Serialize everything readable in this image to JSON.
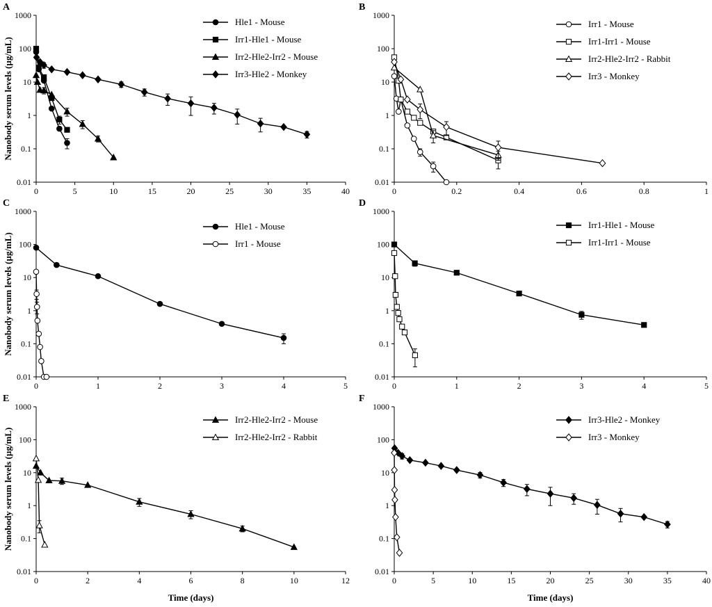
{
  "figure": {
    "ylabel": "Nanobody serum levels (µg/mL)",
    "xlabel": "Time (days)"
  },
  "chart_data": [
    {
      "panel": "A",
      "type": "scatter",
      "xlim": [
        0,
        40
      ],
      "xticks": [
        0,
        5,
        10,
        15,
        20,
        25,
        30,
        35,
        40
      ],
      "ylim": [
        0.01,
        1000
      ],
      "yscale": "log",
      "yticks": [
        "0.01",
        "0.1",
        "1",
        "10",
        "100",
        "1000"
      ],
      "ylabel": "Nanobody serum levels (µg/mL)",
      "xlabel": "",
      "series": [
        {
          "name": "Hle1 - Mouse",
          "marker": "circle",
          "filled": true,
          "x": [
            0,
            0.33,
            1,
            2,
            3,
            4
          ],
          "y": [
            80,
            24,
            11,
            1.6,
            0.4,
            0.15
          ],
          "err": [
            0,
            0,
            0,
            0,
            0,
            0.05
          ]
        },
        {
          "name": "Irr1-Hle1 - Mouse",
          "marker": "square",
          "filled": true,
          "x": [
            0,
            0.33,
            1,
            2,
            3,
            4
          ],
          "y": [
            100,
            27,
            14,
            3.3,
            0.75,
            0.37
          ],
          "err": [
            0,
            0,
            0,
            0,
            0.2,
            0
          ]
        },
        {
          "name": "Irr2-Hle2-Irr2 - Mouse",
          "marker": "triangle",
          "filled": true,
          "x": [
            0,
            0.17,
            0.5,
            1,
            2,
            4,
            6,
            8,
            10
          ],
          "y": [
            16,
            10,
            5.8,
            5.6,
            4.2,
            1.3,
            0.55,
            0.2,
            0.055
          ],
          "err": [
            0,
            0,
            0,
            1.2,
            0,
            0.35,
            0.15,
            0.04,
            0
          ]
        },
        {
          "name": "Irr3-Hle2 - Monkey",
          "marker": "diamond",
          "filled": true,
          "x": [
            0.05,
            0.5,
            1,
            2,
            4,
            6,
            8,
            11,
            14,
            17,
            20,
            23,
            26,
            29,
            32,
            35
          ],
          "y": [
            55,
            40,
            32,
            24,
            20,
            16,
            12,
            8.5,
            5,
            3.2,
            2.3,
            1.7,
            1.05,
            0.57,
            0.45,
            0.27
          ],
          "err": [
            0,
            0,
            6,
            0,
            0,
            0,
            0,
            1.6,
            1.2,
            1.2,
            1.3,
            0.6,
            0.5,
            0.25,
            0,
            0.06
          ]
        }
      ]
    },
    {
      "panel": "B",
      "type": "scatter",
      "xlim": [
        0,
        1
      ],
      "xticks": [
        "0",
        "0.2",
        "0.4",
        "0.6",
        "0.8",
        "1"
      ],
      "ylim": [
        0.01,
        1000
      ],
      "yscale": "log",
      "yticks": [
        "0.01",
        "0.1",
        "1",
        "10",
        "100",
        "1000"
      ],
      "ylabel": "",
      "xlabel": "",
      "series": [
        {
          "name": "Irr1 - Mouse",
          "marker": "circle",
          "filled": false,
          "x": [
            0,
            0.007,
            0.014,
            0.021,
            0.042,
            0.063,
            0.083,
            0.125,
            0.167
          ],
          "y": [
            15,
            3.2,
            1.3,
            3,
            0.5,
            0.2,
            0.08,
            0.03,
            0.01
          ],
          "err": [
            0,
            0,
            0,
            0,
            0,
            0,
            0.02,
            0.01,
            0
          ]
        },
        {
          "name": "Irr1-Irr1 - Mouse",
          "marker": "square",
          "filled": false,
          "x": [
            0,
            0.014,
            0.021,
            0.042,
            0.063,
            0.083,
            0.125,
            0.167,
            0.333
          ],
          "y": [
            55,
            11,
            3,
            1.3,
            0.85,
            0.6,
            0.33,
            0.22,
            0.045
          ],
          "err": [
            0,
            0,
            0,
            0,
            0,
            0,
            0,
            0,
            0.02
          ]
        },
        {
          "name": "Irr2-Hle2-Irr2 - Rabbit",
          "marker": "triangle",
          "filled": false,
          "x": [
            0,
            0.083,
            0.125,
            0.333
          ],
          "y": [
            27,
            6,
            0.25,
            0.065
          ],
          "err": [
            0,
            0,
            0.1,
            0.02
          ]
        },
        {
          "name": "Irr3 - Monkey",
          "marker": "diamond",
          "filled": false,
          "x": [
            0,
            0.021,
            0.042,
            0.083,
            0.167,
            0.333,
            0.667
          ],
          "y": [
            40,
            12,
            3,
            1.5,
            0.45,
            0.11,
            0.037
          ],
          "err": [
            0,
            0,
            0,
            0.7,
            0.2,
            0.06,
            0
          ]
        }
      ]
    },
    {
      "panel": "C",
      "type": "scatter",
      "xlim": [
        0,
        5
      ],
      "xticks": [
        0,
        1,
        2,
        3,
        4,
        5
      ],
      "ylim": [
        0.01,
        1000
      ],
      "yscale": "log",
      "yticks": [
        "0.01",
        "0.1",
        "1",
        "10",
        "100",
        "1000"
      ],
      "ylabel": "Nanobody serum levels (µg/mL)",
      "xlabel": "",
      "series": [
        {
          "name": "Hle1 - Mouse",
          "marker": "circle",
          "filled": true,
          "x": [
            0,
            0.33,
            1,
            2,
            3,
            4
          ],
          "y": [
            80,
            24,
            11,
            1.6,
            0.4,
            0.15
          ],
          "err": [
            0,
            0,
            0,
            0,
            0,
            0.05
          ]
        },
        {
          "name": "Irr1 - Mouse",
          "marker": "circle",
          "filled": false,
          "x": [
            0,
            0.007,
            0.014,
            0.021,
            0.042,
            0.063,
            0.083,
            0.125,
            0.167
          ],
          "y": [
            15,
            3.2,
            1.3,
            0.5,
            0.2,
            0.08,
            0.03,
            0.01,
            0.01
          ],
          "err": [
            0,
            1,
            0.5,
            0,
            0,
            0,
            0,
            0,
            0
          ]
        }
      ]
    },
    {
      "panel": "D",
      "type": "scatter",
      "xlim": [
        0,
        5
      ],
      "xticks": [
        0,
        1,
        2,
        3,
        4,
        5
      ],
      "ylim": [
        0.01,
        1000
      ],
      "yscale": "log",
      "yticks": [
        "0.01",
        "0.1",
        "1",
        "10",
        "100",
        "1000"
      ],
      "ylabel": "",
      "xlabel": "",
      "series": [
        {
          "name": "Irr1-Hle1 - Mouse",
          "marker": "square",
          "filled": true,
          "x": [
            0,
            0.33,
            1,
            2,
            3,
            4
          ],
          "y": [
            100,
            27,
            14,
            3.3,
            0.75,
            0.37
          ],
          "err": [
            0,
            5,
            0,
            0,
            0.2,
            0
          ]
        },
        {
          "name": "Irr1-Irr1 - Mouse",
          "marker": "square",
          "filled": false,
          "x": [
            0,
            0.014,
            0.021,
            0.042,
            0.063,
            0.083,
            0.125,
            0.167,
            0.333
          ],
          "y": [
            55,
            11,
            3,
            1.3,
            0.85,
            0.55,
            0.33,
            0.22,
            0.045
          ],
          "err": [
            0,
            0,
            0,
            0,
            0,
            0,
            0,
            0,
            0.025
          ]
        }
      ]
    },
    {
      "panel": "E",
      "type": "scatter",
      "xlim": [
        0,
        12
      ],
      "xticks": [
        0,
        2,
        4,
        6,
        8,
        10,
        12
      ],
      "ylim": [
        0.01,
        1000
      ],
      "yscale": "log",
      "yticks": [
        "0.01",
        "0.1",
        "1",
        "10",
        "100",
        "1000"
      ],
      "ylabel": "Nanobody serum levels (µg/mL)",
      "xlabel": "Time (days)",
      "series": [
        {
          "name": "Irr2-Hle2-Irr2 - Mouse",
          "marker": "triangle",
          "filled": true,
          "x": [
            0,
            0.17,
            0.5,
            1,
            2,
            4,
            6,
            8,
            10
          ],
          "y": [
            16,
            10,
            5.8,
            5.6,
            4.2,
            1.3,
            0.55,
            0.2,
            0.055
          ],
          "err": [
            0,
            0,
            0,
            1.2,
            0,
            0.35,
            0.15,
            0.04,
            0
          ]
        },
        {
          "name": "Irr2-Hle2-Irr2 - Rabbit",
          "marker": "triangle",
          "filled": false,
          "x": [
            0,
            0.083,
            0.125,
            0.333
          ],
          "y": [
            27,
            6,
            0.25,
            0.065
          ],
          "err": [
            0,
            0,
            0.1,
            0
          ]
        }
      ]
    },
    {
      "panel": "F",
      "type": "scatter",
      "xlim": [
        0,
        40
      ],
      "xticks": [
        0,
        5,
        10,
        15,
        20,
        25,
        30,
        35,
        40
      ],
      "ylim": [
        0.01,
        1000
      ],
      "yscale": "log",
      "yticks": [
        "0.01",
        "0.1",
        "1",
        "10",
        "100",
        "1000"
      ],
      "ylabel": "",
      "xlabel": "Time (days)",
      "series": [
        {
          "name": "Irr3-Hle2 - Monkey",
          "marker": "diamond",
          "filled": true,
          "x": [
            0.05,
            0.5,
            1,
            2,
            4,
            6,
            8,
            11,
            14,
            17,
            20,
            23,
            26,
            29,
            32,
            35
          ],
          "y": [
            55,
            40,
            32,
            24,
            20,
            16,
            12,
            8.5,
            5,
            3.2,
            2.3,
            1.7,
            1.05,
            0.57,
            0.45,
            0.27
          ],
          "err": [
            0,
            0,
            6,
            0,
            0,
            0,
            0,
            1.6,
            1.2,
            1.2,
            1.3,
            0.6,
            0.5,
            0.25,
            0,
            0.06
          ]
        },
        {
          "name": "Irr3 - Monkey",
          "marker": "diamond",
          "filled": false,
          "x": [
            0,
            0.021,
            0.042,
            0.083,
            0.167,
            0.333,
            0.667
          ],
          "y": [
            40,
            12,
            3,
            1.5,
            0.45,
            0.11,
            0.037
          ],
          "err": [
            0,
            0,
            0,
            0,
            0,
            0,
            0
          ]
        }
      ]
    }
  ]
}
